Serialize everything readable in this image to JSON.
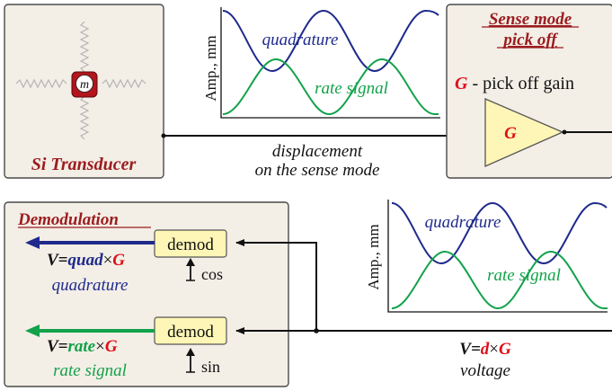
{
  "colors": {
    "box_fill": "#f3eee6",
    "box_stroke": "#4a4a4a",
    "dark_red": "#9b1c1f",
    "red": "#e0101a",
    "navy": "#1f2a8c",
    "green": "#12a24a",
    "yellow": "#fdf6b6",
    "mass_red": "#b4141c",
    "spring": "#b5b5b5",
    "black": "#111111"
  },
  "transducer": {
    "label": "Si Transducer",
    "mass_label": "m"
  },
  "top_plot": {
    "ylabel": "Amp., mm",
    "quadrature_label": "quadrature",
    "rate_label": "rate signal"
  },
  "signal_path": {
    "line1": "displacement",
    "line2": "on the sense mode"
  },
  "pickoff": {
    "title_line1": "Sense mode",
    "title_line2": "pick off",
    "gain_symbol": "G",
    "gain_desc": " - pick off gain",
    "amp_label": "G"
  },
  "demodulation": {
    "title": "Demodulation",
    "demod_top": "demod",
    "demod_bottom": "demod",
    "cos": "cos",
    "sin": "sin",
    "out1": {
      "v": "V=",
      "var": "quad",
      "times": "×",
      "g": "G",
      "desc": "quadrature"
    },
    "out2": {
      "v": "V=",
      "var": "rate",
      "times": "×",
      "g": "G",
      "desc": "rate signal"
    }
  },
  "bottom_plot": {
    "ylabel": "Amp., mm",
    "quadrature_label": "quadrature",
    "rate_label": "rate signal"
  },
  "voltage": {
    "v": "V=",
    "var": "d",
    "times": "×",
    "g": "G",
    "desc": "voltage"
  }
}
